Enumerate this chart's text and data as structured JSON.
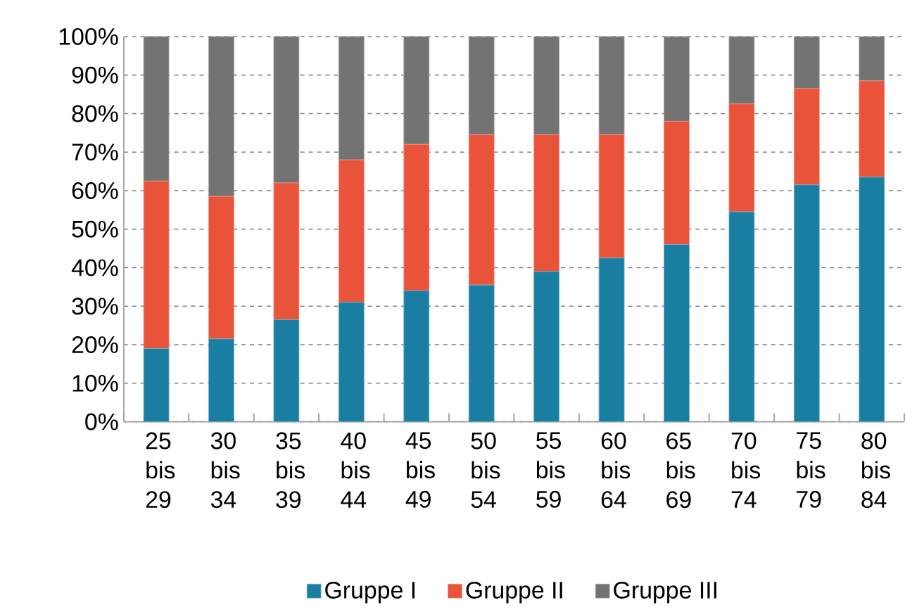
{
  "chart_data": {
    "type": "bar",
    "stacked": true,
    "categories": [
      "25 bis 29",
      "30 bis 34",
      "35 bis 39",
      "40 bis 44",
      "45 bis 49",
      "50 bis 54",
      "55 bis 59",
      "60 bis 64",
      "65 bis 69",
      "70 bis 74",
      "75 bis 79",
      "80 bis 84"
    ],
    "series": [
      {
        "name": "Gruppe I",
        "color": "#1a7ea3",
        "values": [
          19,
          21.5,
          26.5,
          31,
          34,
          35.5,
          39,
          42.5,
          46,
          54.5,
          61.5,
          63.5
        ]
      },
      {
        "name": "Gruppe II",
        "color": "#e8533a",
        "values": [
          43.5,
          37,
          35.5,
          37,
          38,
          39,
          35.5,
          32,
          32,
          28,
          25,
          25
        ]
      },
      {
        "name": "Gruppe III",
        "color": "#737373",
        "values": [
          37.5,
          41.5,
          38,
          32,
          28,
          25.5,
          25.5,
          25.5,
          22,
          17.5,
          13.5,
          11.5
        ]
      }
    ],
    "ylim": [
      0,
      100
    ],
    "yticks": [
      {
        "value": 0,
        "label": "0%"
      },
      {
        "value": 10,
        "label": "10%"
      },
      {
        "value": 20,
        "label": "20%"
      },
      {
        "value": 30,
        "label": "30%"
      },
      {
        "value": 40,
        "label": "40%"
      },
      {
        "value": 50,
        "label": "50%"
      },
      {
        "value": 60,
        "label": "60%"
      },
      {
        "value": 70,
        "label": "70%"
      },
      {
        "value": 80,
        "label": "80%"
      },
      {
        "value": 90,
        "label": "90%"
      },
      {
        "value": 100,
        "label": "100%"
      }
    ],
    "grid": "y",
    "legend": "bottom"
  }
}
